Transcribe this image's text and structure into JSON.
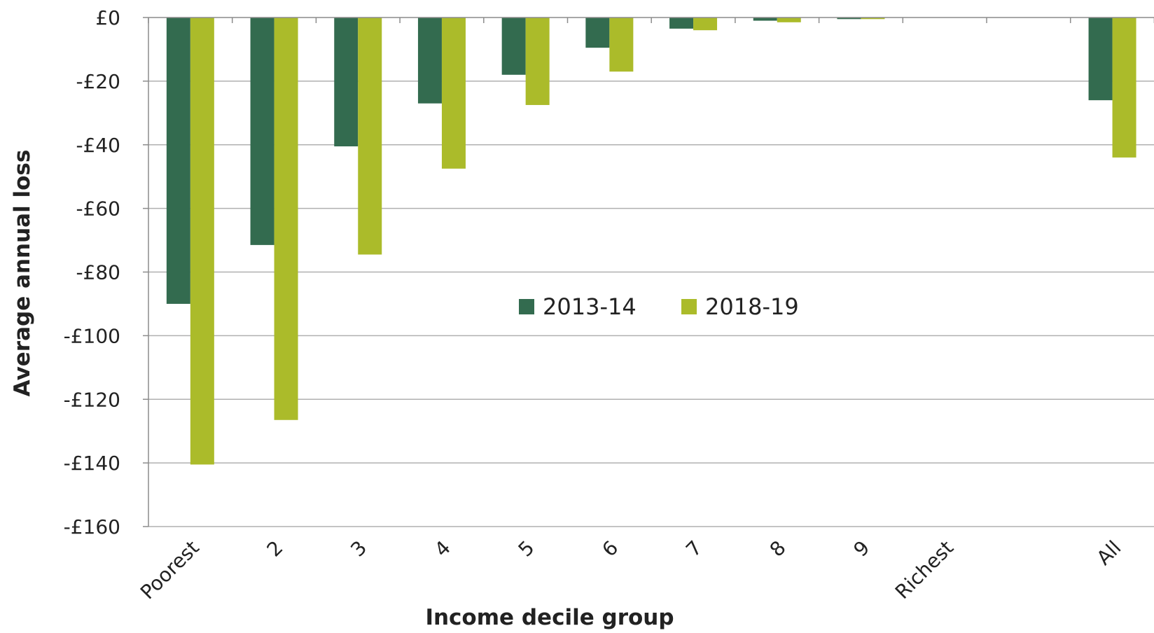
{
  "chart_data": {
    "type": "bar",
    "title": "",
    "xlabel": "Income decile group",
    "ylabel": "Average annual loss",
    "categories": [
      "Poorest",
      "2",
      "3",
      "4",
      "5",
      "6",
      "7",
      "8",
      "9",
      "Richest",
      "",
      "All"
    ],
    "series": [
      {
        "name": "2013-14",
        "color": "#336b4f",
        "values": [
          -90,
          -71.5,
          -40.5,
          -27,
          -18,
          -9.5,
          -3.5,
          -1,
          -0.5,
          0,
          null,
          -26
        ]
      },
      {
        "name": "2018-19",
        "color": "#abbb2a",
        "values": [
          -140.5,
          -126.5,
          -74.5,
          -47.5,
          -27.5,
          -17,
          -4,
          -1.5,
          -0.5,
          0,
          null,
          -44
        ]
      }
    ],
    "ylim": [
      -160,
      0
    ],
    "yticks": [
      0,
      -20,
      -40,
      -60,
      -80,
      -100,
      -120,
      -140,
      -160
    ],
    "ytick_labels": [
      "£0",
      "-£20",
      "-£40",
      "-£60",
      "-£80",
      "-£100",
      "-£120",
      "-£140",
      "-£160"
    ],
    "grid": true,
    "legend_position": "center"
  }
}
